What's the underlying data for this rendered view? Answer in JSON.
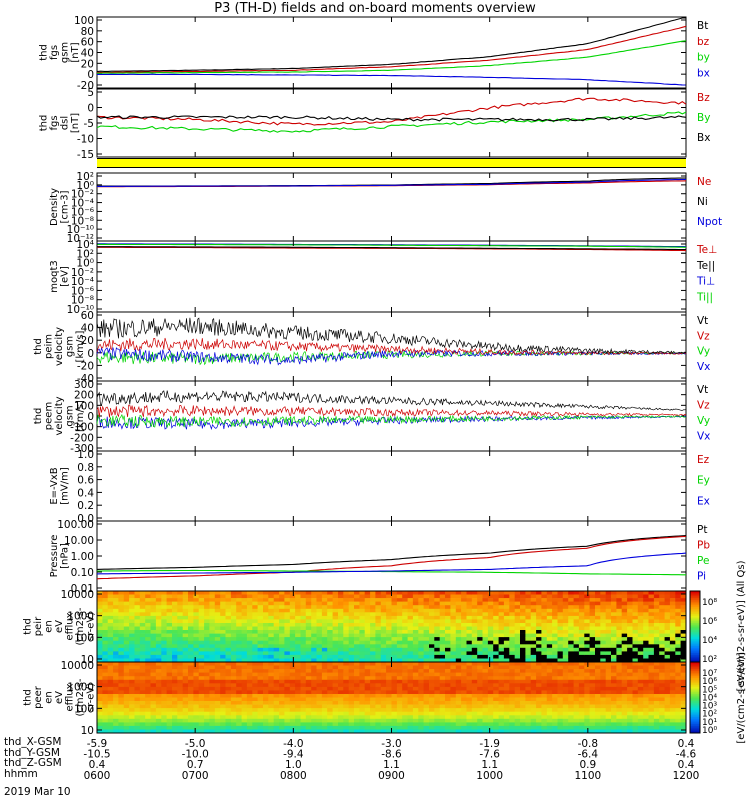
{
  "title": "P3 (TH-D) fields and on-board moments overview",
  "colors": {
    "black": "#000000",
    "red": "#cc0000",
    "green": "#00d400",
    "blue": "#0000dd",
    "yellow": "#ffff00",
    "magenta": "#cc00cc"
  },
  "chart_data": {
    "type": "line",
    "time_ticks": [
      "0600",
      "0700",
      "0800",
      "0900",
      "1000",
      "1100",
      "1200"
    ],
    "time_range": [
      "0600",
      "1200"
    ],
    "panels": [
      {
        "id": "fgs-gsm",
        "ylabel": [
          "thd",
          "fgs",
          "gsm",
          "[nT]"
        ],
        "ylim": [
          -20,
          100
        ],
        "yticks": [
          "100",
          "80",
          "60",
          "40",
          "20",
          "0",
          "-20"
        ],
        "series": [
          {
            "name": "Bt",
            "color": "black",
            "values": [
              8,
              10,
              13,
              20,
              33,
              55,
              100
            ]
          },
          {
            "name": "bz",
            "color": "red",
            "values": [
              6,
              8,
              10,
              16,
              27,
              45,
              84
            ]
          },
          {
            "name": "by",
            "color": "green",
            "values": [
              5,
              6,
              7,
              10,
              18,
              32,
              60
            ]
          },
          {
            "name": "bx",
            "color": "blue",
            "values": [
              3,
              3,
              2,
              1,
              -2,
              -6,
              -15
            ]
          }
        ]
      },
      {
        "id": "fgs-dsl",
        "ylabel": [
          "thd",
          "fgs",
          "dsl",
          "[nT]"
        ],
        "ylim": [
          -19,
          10
        ],
        "yticks": [
          "5",
          "0",
          "-5",
          "-10",
          "-15"
        ],
        "series": [
          {
            "name": "Bz",
            "color": "red",
            "values": [
              -2,
              -3,
              -5,
              -4,
              2,
              6,
              4
            ]
          },
          {
            "name": "By",
            "color": "green",
            "values": [
              -6,
              -7,
              -8,
              -6,
              -4,
              -3,
              0
            ]
          },
          {
            "name": "Bx",
            "color": "black",
            "values": [
              -2,
              -2,
              -2,
              -3,
              -3,
              -3,
              -2
            ]
          }
        ]
      },
      {
        "id": "density",
        "ylabel": [
          "Density",
          "[cm-3]"
        ],
        "scale": "log",
        "yticks": [
          "10²",
          "10⁰",
          "10⁻²",
          "10⁻⁴",
          "10⁻⁶",
          "10⁻⁸",
          "10⁻¹⁰",
          "10⁻¹²"
        ],
        "series": [
          {
            "name": "Ne",
            "color": "red",
            "values": [
              0.3,
              0.33,
              0.4,
              0.5,
              0.8,
              2,
              6
            ]
          },
          {
            "name": "Ni",
            "color": "black",
            "values": [
              0.4,
              0.45,
              0.5,
              0.7,
              1.5,
              5,
              25
            ]
          },
          {
            "name": "Npot",
            "color": "blue",
            "values": [
              0.35,
              0.4,
              0.45,
              0.6,
              1.0,
              3,
              12
            ]
          }
        ]
      },
      {
        "id": "temperature",
        "ylabel": [
          "moqt3",
          "[eV]"
        ],
        "scale": "log",
        "yticks": [
          "10⁴",
          "10²",
          "10⁰",
          "10⁻²",
          "10⁻⁴",
          "10⁻⁶",
          "10⁻⁸",
          "10⁻¹⁰"
        ],
        "series": [
          {
            "name": "Te⊥",
            "color": "red",
            "values": [
              1500,
              1300,
              1000,
              900,
              700,
              500,
              300
            ]
          },
          {
            "name": "Te||",
            "color": "black",
            "values": [
              2000,
              1800,
              1500,
              1200,
              900,
              700,
              500
            ]
          },
          {
            "name": "Ti⊥",
            "color": "blue",
            "values": [
              8000,
              7000,
              6000,
              5000,
              4000,
              3000,
              2000
            ]
          },
          {
            "name": "Ti||",
            "color": "green",
            "values": [
              6000,
              5500,
              5000,
              4000,
              3200,
              2500,
              1500
            ]
          }
        ]
      },
      {
        "id": "peim-velocity",
        "ylabel": [
          "thd",
          "peim",
          "velocity",
          "gsm",
          "[km/s]"
        ],
        "ylim": [
          -40,
          60
        ],
        "yticks": [
          "60",
          "40",
          "20",
          "0",
          "-20",
          "-40"
        ],
        "series": [
          {
            "name": "Vt",
            "color": "black",
            "values": [
              35,
              40,
              30,
              22,
              10,
              4,
              1
            ]
          },
          {
            "name": "Vz",
            "color": "red",
            "values": [
              12,
              14,
              10,
              6,
              2,
              0.5,
              0
            ]
          },
          {
            "name": "Vy",
            "color": "green",
            "values": [
              -5,
              -8,
              -5,
              -2,
              0,
              0,
              0
            ]
          },
          {
            "name": "Vx",
            "color": "blue",
            "values": [
              0,
              -5,
              -10,
              0,
              0,
              0,
              0
            ]
          }
        ]
      },
      {
        "id": "peem-velocity",
        "ylabel": [
          "thd",
          "peem",
          "velocity",
          "gsm",
          "[km/s]"
        ],
        "ylim": [
          -300,
          300
        ],
        "yticks": [
          "300",
          "200",
          "100",
          "0",
          "-100",
          "-200",
          "-300"
        ],
        "series": [
          {
            "name": "Vt",
            "color": "black",
            "values": [
              150,
              170,
              160,
              130,
              110,
              80,
              50
            ]
          },
          {
            "name": "Vz",
            "color": "red",
            "values": [
              40,
              45,
              40,
              30,
              25,
              15,
              10
            ]
          },
          {
            "name": "Vy",
            "color": "green",
            "values": [
              -40,
              -50,
              -40,
              -30,
              -20,
              -10,
              -5
            ]
          },
          {
            "name": "Vx",
            "color": "blue",
            "values": [
              -50,
              -70,
              -60,
              -40,
              -25,
              -15,
              -5
            ]
          }
        ]
      },
      {
        "id": "efield",
        "ylabel": [
          "E=-VxB",
          "[mV/m]"
        ],
        "ylim": [
          0,
          1
        ],
        "yticks": [
          "1.0",
          "0.8",
          "0.6",
          "0.4",
          "0.2",
          "0.0"
        ],
        "series": [
          {
            "name": "Ez",
            "color": "red",
            "values": []
          },
          {
            "name": "Ey",
            "color": "green",
            "values": []
          },
          {
            "name": "Ex",
            "color": "blue",
            "values": []
          }
        ]
      },
      {
        "id": "pressure",
        "ylabel": [
          "Pressure",
          "[nPa]"
        ],
        "scale": "log",
        "ylim": [
          0.01,
          100
        ],
        "yticks": [
          "100.00",
          "10.00",
          "1.00",
          "0.10",
          "0.01"
        ],
        "series": [
          {
            "name": "Pt",
            "color": "black",
            "values": [
              0.15,
              0.2,
              0.3,
              0.6,
              1.5,
              4,
              18
            ]
          },
          {
            "name": "Pb",
            "color": "red",
            "values": [
              0.04,
              0.06,
              0.1,
              0.25,
              0.8,
              3,
              16
            ]
          },
          {
            "name": "Pe",
            "color": "green",
            "values": [
              0.12,
              0.13,
              0.12,
              0.11,
              0.1,
              0.08,
              0.07
            ]
          },
          {
            "name": "Pi",
            "color": "blue",
            "values": [
              0.08,
              0.09,
              0.1,
              0.12,
              0.15,
              0.25,
              1.5
            ]
          }
        ]
      },
      {
        "id": "peir",
        "type": "heatmap",
        "ylabel": [
          "thd",
          "peir",
          "en",
          "eV",
          "efflux",
          "(cm2-s-",
          "sr-eV)"
        ],
        "yticks": [
          "10000",
          "1000",
          "100",
          "10"
        ],
        "colorbar_ticks": [
          "10⁸",
          "10⁶",
          "10⁴",
          "10²"
        ],
        "colorbar_label": "[eV/(cm2-s-sr-eV)] (All Qs)"
      },
      {
        "id": "peer",
        "type": "heatmap",
        "ylabel": [
          "thd",
          "peer",
          "en",
          "eV",
          "efflux",
          "(cm2-s-",
          "sr-eV)"
        ],
        "yticks": [
          "10000",
          "1000",
          "100",
          "10"
        ],
        "colorbar_ticks": [
          "10⁷",
          "10⁶",
          "10⁵",
          "10⁴",
          "10³",
          "10²",
          "10¹",
          "10⁰"
        ],
        "colorbar_label": "[eV/(cm2-s-sr-eV)]"
      }
    ],
    "orbit": {
      "rows": [
        {
          "label": "thd_X-GSM",
          "values": [
            "-5.9",
            "-5.0",
            "-4.0",
            "-3.0",
            "-1.9",
            "-0.8",
            "0.4"
          ]
        },
        {
          "label": "thd_Y-GSM",
          "values": [
            "-10.5",
            "-10.0",
            "-9.4",
            "-8.6",
            "-7.6",
            "-6.4",
            "-4.6"
          ]
        },
        {
          "label": "thd_Z-GSM",
          "values": [
            "0.4",
            "0.7",
            "1.0",
            "1.1",
            "1.1",
            "0.9",
            "0.4"
          ]
        },
        {
          "label": "hhmm",
          "values": [
            "0600",
            "0700",
            "0800",
            "0900",
            "1000",
            "1100",
            "1200"
          ]
        }
      ]
    },
    "date": "2019 Mar 10"
  }
}
